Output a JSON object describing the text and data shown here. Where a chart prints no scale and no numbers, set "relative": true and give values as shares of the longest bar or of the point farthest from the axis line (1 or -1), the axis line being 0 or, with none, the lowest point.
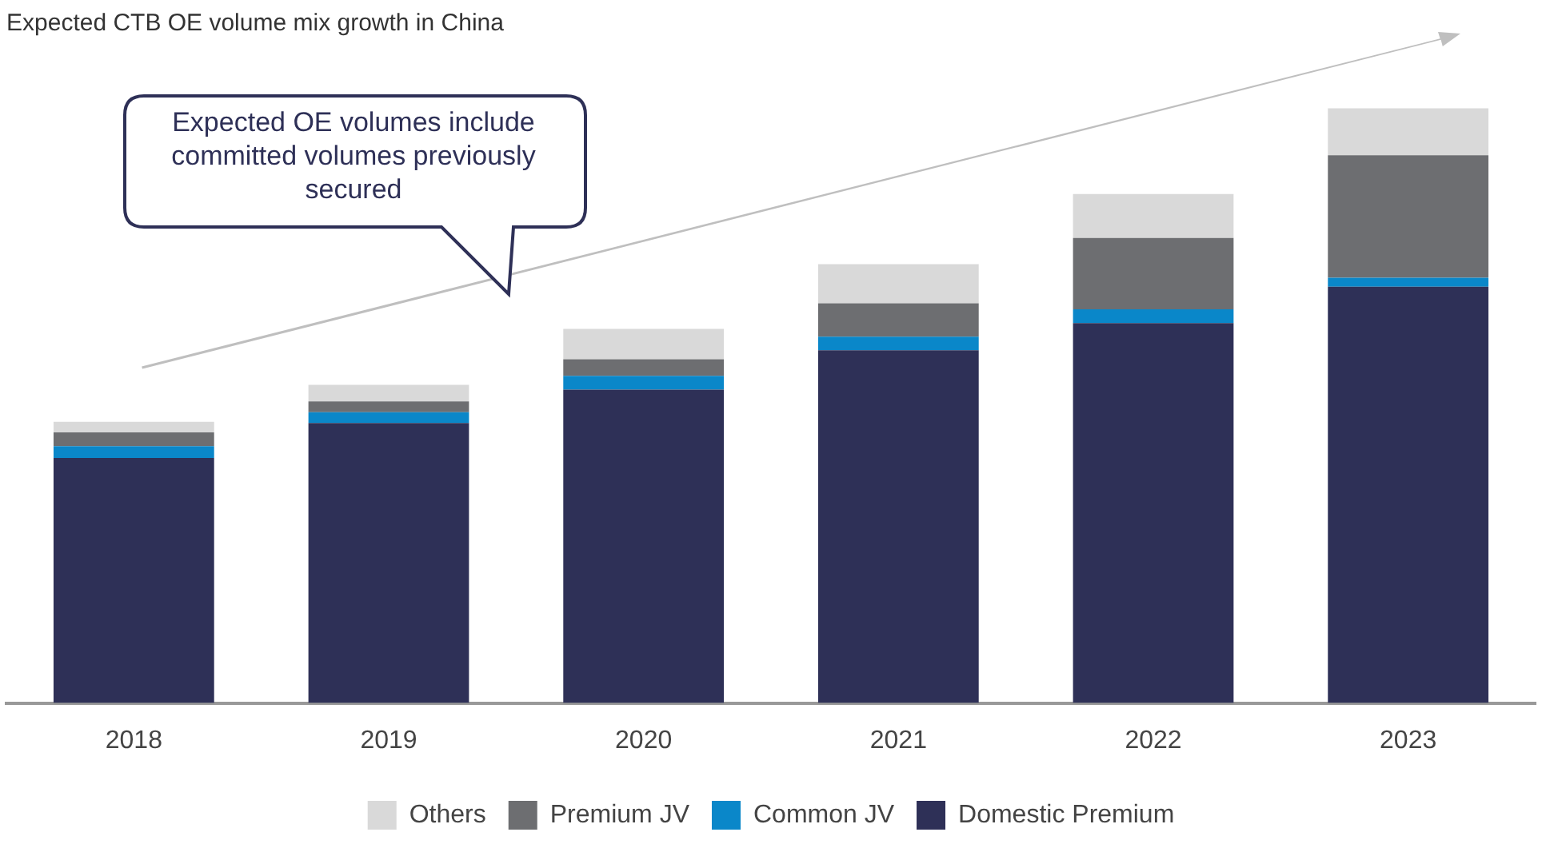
{
  "chart_data": {
    "type": "bar",
    "title": "Expected CTB OE volume mix growth in China",
    "categories": [
      "2018",
      "2019",
      "2020",
      "2021",
      "2022",
      "2023"
    ],
    "stacked": true,
    "relative": true,
    "legend": "bottom",
    "grid": false,
    "series": [
      {
        "name": "Domestic Premium",
        "color": "#2e3057",
        "values": [
          0.412,
          0.471,
          0.527,
          0.593,
          0.639,
          0.7
        ]
      },
      {
        "name": "Common JV",
        "color": "#0a87c9",
        "values": [
          0.02,
          0.018,
          0.023,
          0.023,
          0.023,
          0.015
        ]
      },
      {
        "name": "Premium JV",
        "color": "#6d6e71",
        "values": [
          0.023,
          0.018,
          0.028,
          0.056,
          0.12,
          0.206
        ]
      },
      {
        "name": "Others",
        "color": "#d9d9d9",
        "values": [
          0.018,
          0.028,
          0.051,
          0.066,
          0.074,
          0.079
        ]
      }
    ],
    "annotations": [
      "Expected OE volumes include committed volumes previously secured"
    ]
  }
}
